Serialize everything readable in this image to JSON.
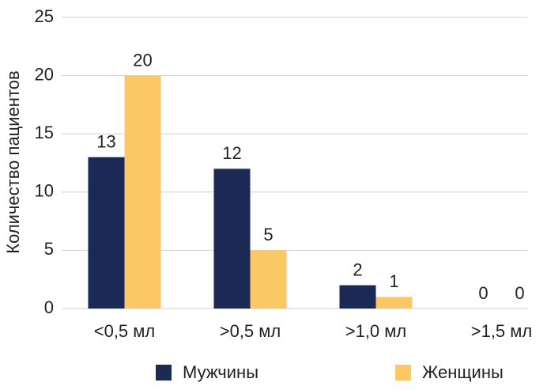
{
  "chart_data": {
    "type": "bar",
    "y_label": "Количество пациентов",
    "categories": [
      "<0,5 мл",
      ">0,5 мл",
      ">1,0 мл",
      ">1,5 мл"
    ],
    "series": [
      {
        "name": "Мужчины",
        "color": "#1b2a55",
        "values": [
          13,
          12,
          2,
          0
        ]
      },
      {
        "name": "Женщины",
        "color": "#fcc865",
        "values": [
          20,
          5,
          1,
          0
        ]
      }
    ],
    "ylim": [
      0,
      25
    ],
    "yticks": [
      0,
      5,
      10,
      15,
      20,
      25
    ],
    "grid": true,
    "legend": "bottom"
  }
}
